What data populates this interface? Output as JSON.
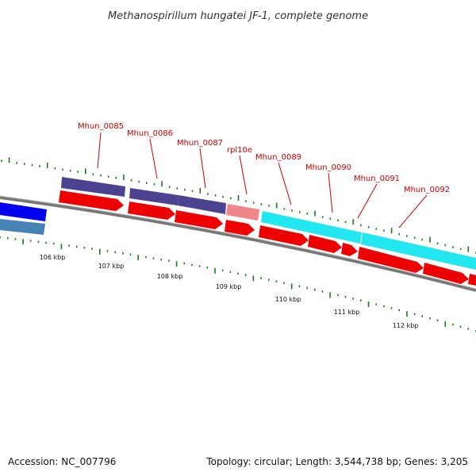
{
  "title": "Methanospirillum hungatei JF-1, complete genome",
  "footer": {
    "accession": "Accession: NC_007796",
    "summary": "Topology: circular; Length: 3,544,738 bp; Genes: 3,205"
  },
  "colors": {
    "background": "#ffffff",
    "backbone": "#808080",
    "gene_label": "#cc0000",
    "leader_line": "#cc0000",
    "tick": "#1a7a1a",
    "cds_forward": "#ee0000",
    "feature_purple": "#4b4290",
    "feature_cyan": "#22e6f0",
    "feature_pink": "#ee8888",
    "feature_blue": "#0000ee",
    "feature_steelblue": "#4682b4"
  },
  "kbp_labels": [
    "106 kbp",
    "107 kbp",
    "108 kbp",
    "109 kbp",
    "110 kbp",
    "111 kbp",
    "112 kbp"
  ],
  "gene_labels": [
    "Mhun_0085",
    "Mhun_0086",
    "Mhun_0087",
    "rpl10e",
    "Mhun_0089",
    "Mhun_0090",
    "Mhun_0091",
    "Mhun_0092"
  ]
}
